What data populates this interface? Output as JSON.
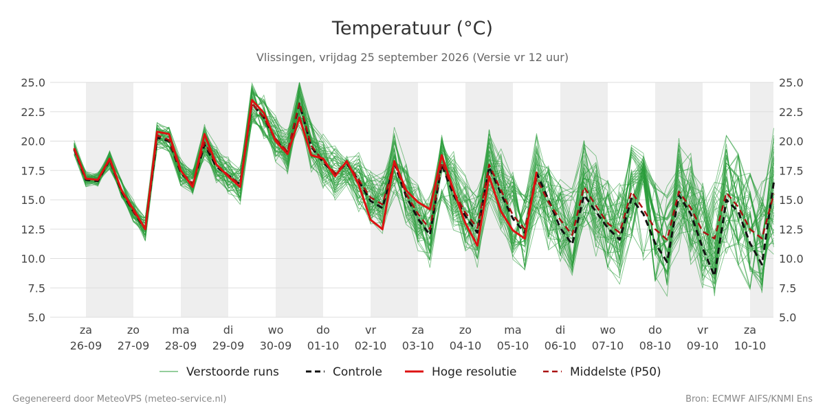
{
  "header": {
    "title": "Temperatuur (°C)",
    "subtitle": "Vlissingen, vrijdag 25 september 2026 (Versie vr 12 uur)"
  },
  "footer": {
    "left": "Gegenereerd door MeteoVPS (meteo-service.nl)",
    "right": "Bron: ECMWF AIFS/KNMI Ens"
  },
  "colors": {
    "ensemble": "#2a9d3a",
    "control": "#111111",
    "hires": "#dd1111",
    "median": "#aa1111",
    "weekend_band": "#eeeeee",
    "grid": "#dddddd"
  },
  "chart_data": {
    "type": "line",
    "ylim": [
      5,
      25
    ],
    "yticks": [
      "5.0",
      "7.5",
      "10.0",
      "12.5",
      "15.0",
      "17.5",
      "20.0",
      "22.5",
      "25.0"
    ],
    "xlim": [
      0,
      14.5
    ],
    "x_unit": "days from za 26-09 00:00",
    "day_labels": [
      {
        "day": "za",
        "date": "26-09"
      },
      {
        "day": "zo",
        "date": "27-09"
      },
      {
        "day": "ma",
        "date": "28-09"
      },
      {
        "day": "di",
        "date": "29-09"
      },
      {
        "day": "wo",
        "date": "30-09"
      },
      {
        "day": "do",
        "date": "01-10"
      },
      {
        "day": "vr",
        "date": "02-10"
      },
      {
        "day": "za",
        "date": "03-10"
      },
      {
        "day": "zo",
        "date": "04-10"
      },
      {
        "day": "ma",
        "date": "05-10"
      },
      {
        "day": "di",
        "date": "06-10"
      },
      {
        "day": "wo",
        "date": "07-10"
      },
      {
        "day": "do",
        "date": "08-10"
      },
      {
        "day": "vr",
        "date": "09-10"
      },
      {
        "day": "za",
        "date": "10-10"
      }
    ],
    "shaded_bands": [
      [
        0,
        1
      ],
      [
        2,
        3
      ],
      [
        4,
        5
      ],
      [
        6,
        7
      ],
      [
        8,
        9
      ],
      [
        10,
        11
      ],
      [
        12,
        13
      ],
      [
        14,
        14.5
      ]
    ],
    "legend": [
      {
        "label": "Verstoorde runs",
        "style": "thin-green"
      },
      {
        "label": "Controle",
        "style": "black-dashed"
      },
      {
        "label": "Hoge resolutie",
        "style": "red-solid"
      },
      {
        "label": "Middelste (P50)",
        "style": "darkred-dashed"
      }
    ],
    "series": [
      {
        "key": "hires",
        "points": [
          [
            -0.25,
            19.4
          ],
          [
            0,
            16.8
          ],
          [
            0.25,
            16.7
          ],
          [
            0.5,
            18.5
          ],
          [
            0.75,
            15.8
          ],
          [
            1,
            14.2
          ],
          [
            1.25,
            12.5
          ],
          [
            1.5,
            20.8
          ],
          [
            1.75,
            20.6
          ],
          [
            2,
            17.5
          ],
          [
            2.25,
            16.1
          ],
          [
            2.5,
            20.6
          ],
          [
            2.75,
            18.0
          ],
          [
            3,
            17.0
          ],
          [
            3.25,
            16.1
          ],
          [
            3.5,
            23.5
          ],
          [
            3.75,
            22.4
          ],
          [
            4,
            20.0
          ],
          [
            4.25,
            18.9
          ],
          [
            4.5,
            22.0
          ],
          [
            4.75,
            18.8
          ],
          [
            5,
            18.5
          ],
          [
            5.25,
            17.0
          ],
          [
            5.5,
            18.3
          ],
          [
            5.75,
            16.3
          ],
          [
            6,
            13.3
          ],
          [
            6.25,
            12.5
          ],
          [
            6.5,
            18.3
          ],
          [
            6.75,
            15.8
          ],
          [
            7,
            14.8
          ],
          [
            7.25,
            14.2
          ],
          [
            7.5,
            18.8
          ],
          [
            7.75,
            15.8
          ],
          [
            8,
            13.0
          ],
          [
            8.25,
            11.1
          ],
          [
            8.5,
            17.0
          ],
          [
            8.75,
            14.0
          ],
          [
            9,
            12.4
          ],
          [
            9.25,
            11.7
          ],
          [
            9.5,
            17.4
          ]
        ]
      },
      {
        "key": "control",
        "points": [
          [
            -0.25,
            19.3
          ],
          [
            0,
            16.7
          ],
          [
            0.25,
            16.6
          ],
          [
            0.5,
            18.4
          ],
          [
            0.75,
            15.7
          ],
          [
            1,
            14.0
          ],
          [
            1.25,
            12.5
          ],
          [
            1.5,
            20.3
          ],
          [
            1.75,
            20.0
          ],
          [
            2,
            17.3
          ],
          [
            2.25,
            16.3
          ],
          [
            2.5,
            19.7
          ],
          [
            2.75,
            17.8
          ],
          [
            3,
            17.1
          ],
          [
            3.25,
            16.3
          ],
          [
            3.5,
            23.2
          ],
          [
            3.75,
            22.0
          ],
          [
            4,
            20.1
          ],
          [
            4.25,
            19.0
          ],
          [
            4.5,
            23.2
          ],
          [
            4.75,
            19.5
          ],
          [
            5,
            18.2
          ],
          [
            5.25,
            17.2
          ],
          [
            5.5,
            18.1
          ],
          [
            5.75,
            16.6
          ],
          [
            6,
            14.9
          ],
          [
            6.25,
            14.3
          ],
          [
            6.5,
            18.1
          ],
          [
            6.75,
            15.3
          ],
          [
            7,
            13.4
          ],
          [
            7.25,
            12.0
          ],
          [
            7.5,
            18.0
          ],
          [
            7.75,
            15.4
          ],
          [
            8,
            13.6
          ],
          [
            8.25,
            12.2
          ],
          [
            8.5,
            17.8
          ],
          [
            8.75,
            15.5
          ],
          [
            9,
            13.4
          ],
          [
            9.25,
            12.2
          ],
          [
            9.5,
            17.3
          ],
          [
            9.75,
            15.0
          ],
          [
            10,
            12.6
          ],
          [
            10.25,
            11.2
          ],
          [
            10.5,
            15.4
          ],
          [
            10.75,
            14.0
          ],
          [
            11,
            12.6
          ],
          [
            11.25,
            11.6
          ],
          [
            11.5,
            15.1
          ],
          [
            11.75,
            13.8
          ],
          [
            12,
            11.3
          ],
          [
            12.25,
            9.7
          ],
          [
            12.5,
            15.4
          ],
          [
            12.75,
            13.8
          ],
          [
            13,
            10.9
          ],
          [
            13.25,
            8.5
          ],
          [
            13.5,
            15.0
          ],
          [
            13.75,
            14.0
          ],
          [
            14,
            11.3
          ],
          [
            14.25,
            9.5
          ],
          [
            14.5,
            16.5
          ]
        ]
      },
      {
        "key": "median",
        "points": [
          [
            -0.25,
            19.4
          ],
          [
            0,
            16.8
          ],
          [
            0.25,
            16.7
          ],
          [
            0.5,
            18.4
          ],
          [
            0.75,
            15.8
          ],
          [
            1,
            14.0
          ],
          [
            1.25,
            12.6
          ],
          [
            1.5,
            20.5
          ],
          [
            1.75,
            20.1
          ],
          [
            2,
            17.4
          ],
          [
            2.25,
            16.4
          ],
          [
            2.5,
            19.9
          ],
          [
            2.75,
            18.0
          ],
          [
            3,
            17.1
          ],
          [
            3.25,
            16.3
          ],
          [
            3.5,
            23.2
          ],
          [
            3.75,
            22.0
          ],
          [
            4,
            20.2
          ],
          [
            4.25,
            19.1
          ],
          [
            4.5,
            23.3
          ],
          [
            4.75,
            19.6
          ],
          [
            5,
            18.3
          ],
          [
            5.25,
            17.3
          ],
          [
            5.5,
            18.2
          ],
          [
            5.75,
            16.7
          ],
          [
            6,
            15.2
          ],
          [
            6.25,
            14.6
          ],
          [
            6.5,
            18.2
          ],
          [
            6.75,
            15.5
          ],
          [
            7,
            13.8
          ],
          [
            7.25,
            12.5
          ],
          [
            7.5,
            18.2
          ],
          [
            7.75,
            15.7
          ],
          [
            8,
            13.9
          ],
          [
            8.25,
            12.6
          ],
          [
            8.5,
            18.0
          ],
          [
            8.75,
            15.8
          ],
          [
            9,
            13.7
          ],
          [
            9.25,
            12.5
          ],
          [
            9.5,
            16.8
          ],
          [
            9.75,
            14.8
          ],
          [
            10,
            13.3
          ],
          [
            10.25,
            12.0
          ],
          [
            10.5,
            16.1
          ],
          [
            10.75,
            14.5
          ],
          [
            11,
            13.0
          ],
          [
            11.25,
            12.2
          ],
          [
            11.5,
            15.7
          ],
          [
            11.75,
            14.2
          ],
          [
            12,
            12.5
          ],
          [
            12.25,
            11.6
          ],
          [
            12.5,
            15.7
          ],
          [
            12.75,
            14.3
          ],
          [
            13,
            12.3
          ],
          [
            13.25,
            11.7
          ],
          [
            13.5,
            15.6
          ],
          [
            13.75,
            14.4
          ],
          [
            14,
            12.5
          ],
          [
            14.25,
            11.7
          ],
          [
            14.5,
            15.5
          ]
        ]
      }
    ]
  }
}
